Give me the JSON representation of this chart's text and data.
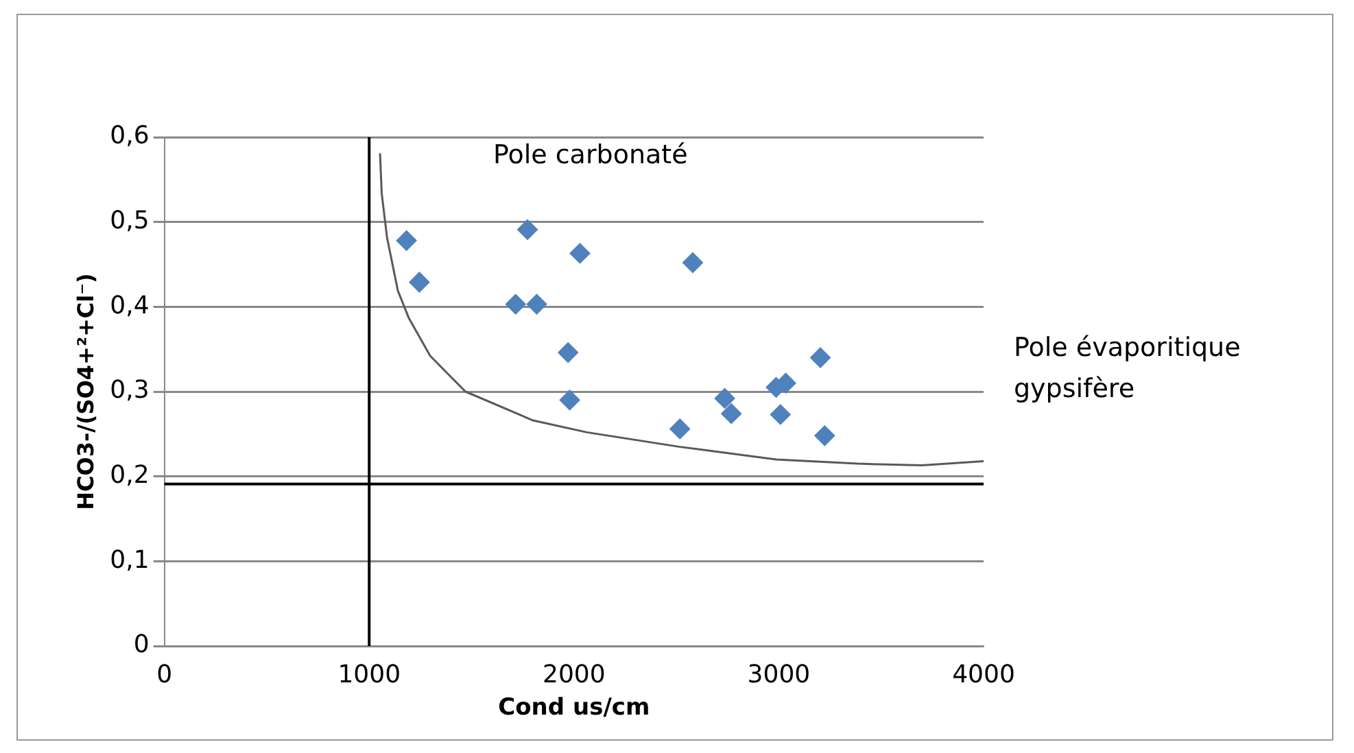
{
  "chart_data": {
    "type": "scatter",
    "xlabel": "Cond us/cm",
    "ylabel": "HCO3-/(SO4+²+Cl⁻)",
    "xlim": [
      0,
      4000
    ],
    "xticks": [
      0,
      1000,
      2000,
      3000,
      4000
    ],
    "ylim": [
      0,
      0.6
    ],
    "yticks": [
      {
        "value": 0,
        "label": "0"
      },
      {
        "value": 0.1,
        "label": "0,1"
      },
      {
        "value": 0.2,
        "label": "0,2"
      },
      {
        "value": 0.3,
        "label": "0,3"
      },
      {
        "value": 0.4,
        "label": "0,4"
      },
      {
        "value": 0.5,
        "label": "0,5"
      },
      {
        "value": 0.6,
        "label": "0,6"
      }
    ],
    "grid": "y",
    "legend": false,
    "series": [
      {
        "type": "scatter",
        "color": "#4f81bd",
        "marker": "diamond",
        "x": [
          1182,
          1245,
          1773,
          1715,
          1818,
          2029,
          2580,
          1971,
          1979,
          2517,
          2736,
          2768,
          2987,
          3034,
          3008,
          3203,
          3224
        ],
        "values": [
          0.478,
          0.429,
          0.491,
          0.403,
          0.403,
          0.463,
          0.452,
          0.346,
          0.29,
          0.256,
          0.292,
          0.274,
          0.305,
          0.31,
          0.273,
          0.34,
          0.248
        ]
      },
      {
        "type": "line",
        "color": "#595959",
        "marker": "none",
        "line_style": "solid",
        "x": [
          1053,
          1061,
          1087,
          1140,
          1193,
          1298,
          1470,
          1800,
          2063,
          2512,
          2987,
          3383,
          3699,
          4000
        ],
        "values": [
          0.581,
          0.534,
          0.482,
          0.419,
          0.387,
          0.342,
          0.3,
          0.266,
          0.252,
          0.235,
          0.22,
          0.215,
          0.213,
          0.218
        ]
      }
    ],
    "ref_lines": [
      {
        "axis": "x",
        "value": 1000,
        "color": "#000000"
      },
      {
        "axis": "y",
        "value": 0.191,
        "color": "#000000"
      }
    ],
    "annotations": [
      "Pole carbonaté",
      "Pole évaporitique gypsifère"
    ]
  }
}
